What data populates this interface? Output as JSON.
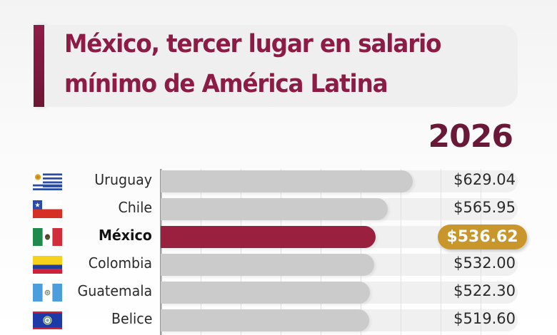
{
  "header": {
    "title_line1": "México, tercer lugar en salario",
    "title_line2": "mínimo de América Latina",
    "year": "2026"
  },
  "colors": {
    "title": "#8d1c45",
    "year": "#6a1838",
    "highlight_bar": "#99203f",
    "default_bar": "#cbcbcb",
    "highlight_value_pill": "#c9962b",
    "track": "#f0f0f0"
  },
  "chart_data": {
    "type": "bar",
    "orientation": "horizontal",
    "title": "México, tercer lugar en salario mínimo de América Latina",
    "subtitle": "2026",
    "xlabel": "",
    "ylabel": "",
    "xlim": [
      0,
      890
    ],
    "grid": true,
    "highlight": "México",
    "categories": [
      "Uruguay",
      "Chile",
      "México",
      "Colombia",
      "Guatemala",
      "Belice"
    ],
    "values": [
      629.04,
      565.95,
      536.62,
      532.0,
      522.3,
      519.6
    ],
    "value_labels": [
      "$629.04",
      "$565.95",
      "$536.62",
      "$532.00",
      "$522.30",
      "$519.60"
    ],
    "flags": [
      "uruguay-flag-icon",
      "chile-flag-icon",
      "mexico-flag-icon",
      "colombia-flag-icon",
      "guatemala-flag-icon",
      "belize-flag-icon"
    ]
  }
}
